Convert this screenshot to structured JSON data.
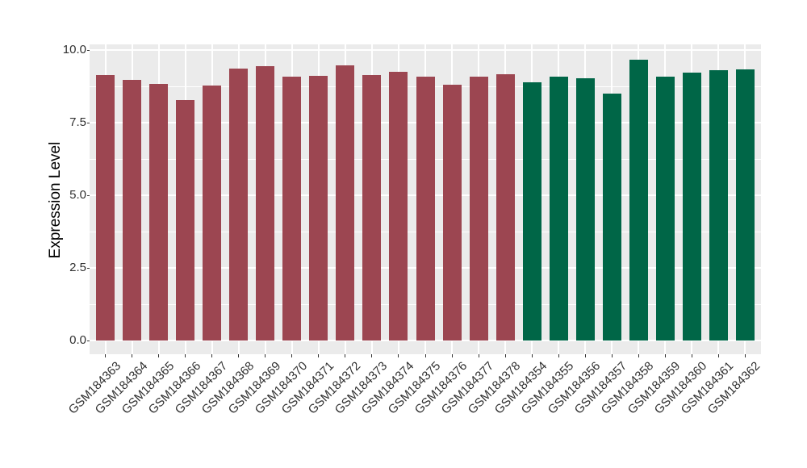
{
  "chart_data": {
    "type": "bar",
    "title": "",
    "ylabel": "Expression Level",
    "xlabel": "",
    "ylim": [
      0,
      10.2
    ],
    "grid": "on",
    "legend_position": "none",
    "yticks": [
      {
        "value": 0.0,
        "label": "0.0"
      },
      {
        "value": 2.5,
        "label": "2.5"
      },
      {
        "value": 5.0,
        "label": "5.0"
      },
      {
        "value": 7.5,
        "label": "7.5"
      },
      {
        "value": 10.0,
        "label": "10.0"
      }
    ],
    "minor_yticks": [
      1.25,
      3.75,
      6.25,
      8.75
    ],
    "categories": [
      "GSM184363",
      "GSM184364",
      "GSM184365",
      "GSM184366",
      "GSM184367",
      "GSM184368",
      "GSM184369",
      "GSM184370",
      "GSM184371",
      "GSM184372",
      "GSM184373",
      "GSM184374",
      "GSM184375",
      "GSM184376",
      "GSM184377",
      "GSM184378",
      "GSM184354",
      "GSM184355",
      "GSM184356",
      "GSM184357",
      "GSM184358",
      "GSM184359",
      "GSM184360",
      "GSM184361",
      "GSM184362"
    ],
    "values": [
      9.13,
      8.96,
      8.84,
      8.28,
      8.79,
      9.36,
      9.45,
      9.08,
      9.1,
      9.48,
      9.13,
      9.25,
      9.08,
      8.81,
      9.08,
      9.18,
      8.9,
      9.08,
      9.04,
      8.51,
      9.67,
      9.08,
      9.23,
      9.31,
      9.34
    ],
    "groups": [
      "maroon",
      "maroon",
      "maroon",
      "maroon",
      "maroon",
      "maroon",
      "maroon",
      "maroon",
      "maroon",
      "maroon",
      "maroon",
      "maroon",
      "maroon",
      "maroon",
      "maroon",
      "maroon",
      "green",
      "green",
      "green",
      "green",
      "green",
      "green",
      "green",
      "green",
      "green"
    ],
    "palette": {
      "maroon": "#9C4651",
      "green": "#006647"
    },
    "panel_bg": "#EBEBEB",
    "grid_color": "#FFFFFF",
    "tick_color": "#333333"
  }
}
